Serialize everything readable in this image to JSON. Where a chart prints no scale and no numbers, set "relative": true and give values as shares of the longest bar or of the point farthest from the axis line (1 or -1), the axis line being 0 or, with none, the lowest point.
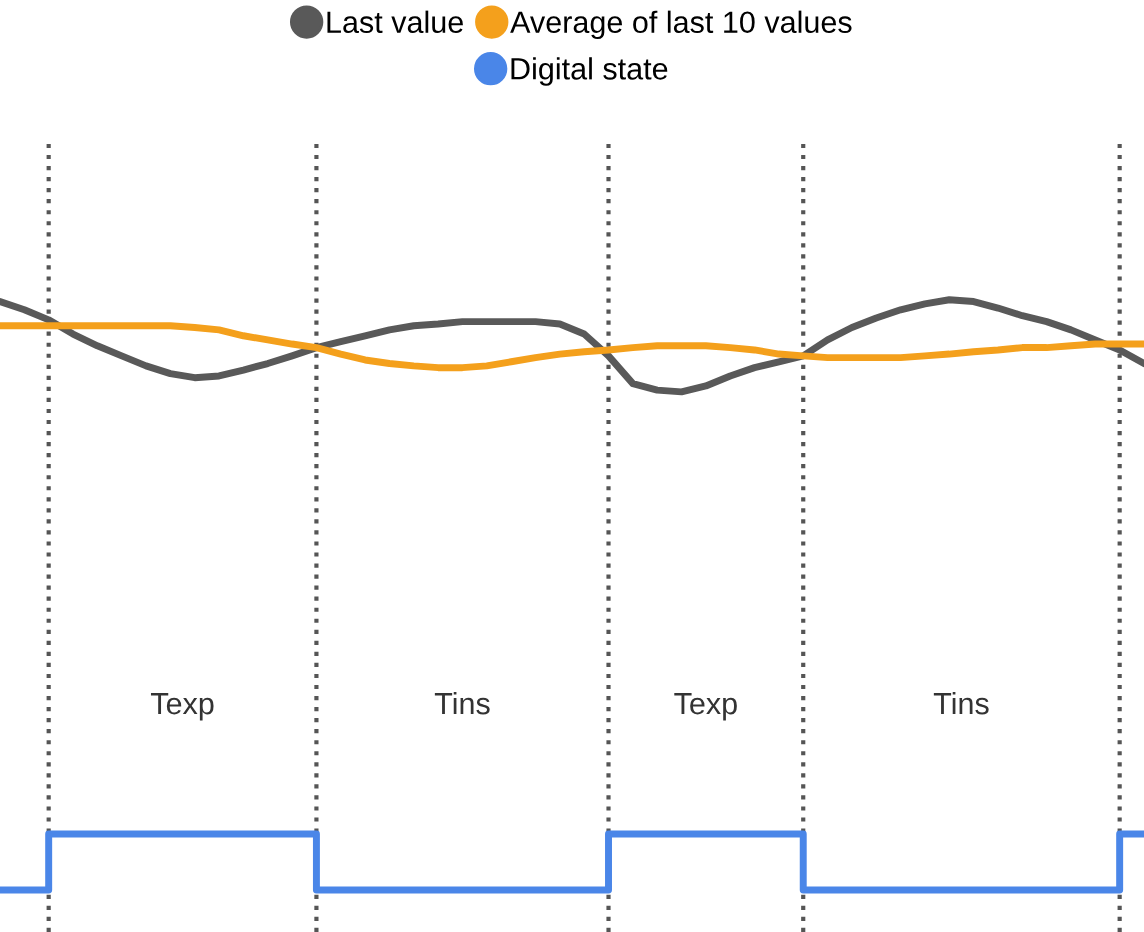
{
  "chart_data": {
    "type": "line",
    "relative": true,
    "legend": "top",
    "marker": "none",
    "line_style": "solid",
    "categories": [
      null,
      null,
      null,
      null,
      null,
      null,
      null,
      null,
      null,
      null,
      null,
      null,
      null,
      null,
      null,
      null,
      null,
      null,
      null,
      null,
      null,
      null,
      null,
      null,
      null,
      null,
      null,
      null,
      null,
      null,
      null,
      null,
      null,
      null,
      null,
      null,
      null,
      null,
      null,
      null,
      null,
      null,
      null,
      null,
      null,
      null,
      null,
      null
    ],
    "series": [
      {
        "name": "Last value",
        "color": "#595959",
        "values": [
          0.997,
          0.983,
          0.966,
          0.942,
          0.922,
          0.905,
          0.888,
          0.875,
          0.868,
          0.871,
          0.881,
          0.892,
          0.905,
          0.919,
          0.929,
          0.939,
          0.949,
          0.956,
          0.959,
          0.963,
          0.963,
          0.963,
          0.963,
          0.959,
          0.942,
          0.905,
          0.858,
          0.847,
          0.844,
          0.854,
          0.871,
          0.885,
          0.895,
          0.905,
          0.932,
          0.953,
          0.969,
          0.983,
          0.993,
          1,
          0.997,
          0.986,
          0.973,
          0.963,
          0.949,
          0.932,
          0.915,
          0.892
        ]
      },
      {
        "name": "Average of last 10 values",
        "color": "#f4a01c",
        "values": [
          0.956,
          0.956,
          0.956,
          0.956,
          0.956,
          0.956,
          0.956,
          0.956,
          0.953,
          0.949,
          0.939,
          0.932,
          0.925,
          0.919,
          0.908,
          0.898,
          0.892,
          0.888,
          0.885,
          0.885,
          0.888,
          0.895,
          0.902,
          0.908,
          0.912,
          0.915,
          0.919,
          0.922,
          0.922,
          0.922,
          0.919,
          0.915,
          0.908,
          0.905,
          0.902,
          0.902,
          0.902,
          0.902,
          0.905,
          0.908,
          0.912,
          0.915,
          0.919,
          0.919,
          0.922,
          0.925,
          0.925,
          0.925
        ]
      },
      {
        "name": "Digital state",
        "color": "#4a86e8",
        "type": "step",
        "values": [
          0,
          0,
          0.095,
          0.095,
          0.095,
          0.095,
          0.095,
          0.095,
          0.095,
          0.095,
          0.095,
          0.095,
          0.095,
          0,
          0,
          0,
          0,
          0,
          0,
          0,
          0,
          0,
          0,
          0,
          0,
          0.095,
          0.095,
          0.095,
          0.095,
          0.095,
          0.095,
          0.095,
          0.095,
          0,
          0,
          0,
          0,
          0,
          0,
          0,
          0,
          0,
          0,
          0,
          0,
          0,
          0.095,
          0.095
        ]
      }
    ],
    "grid": "x",
    "annotations": [
      "Texp",
      "Tins",
      "Texp",
      "Tins"
    ]
  }
}
